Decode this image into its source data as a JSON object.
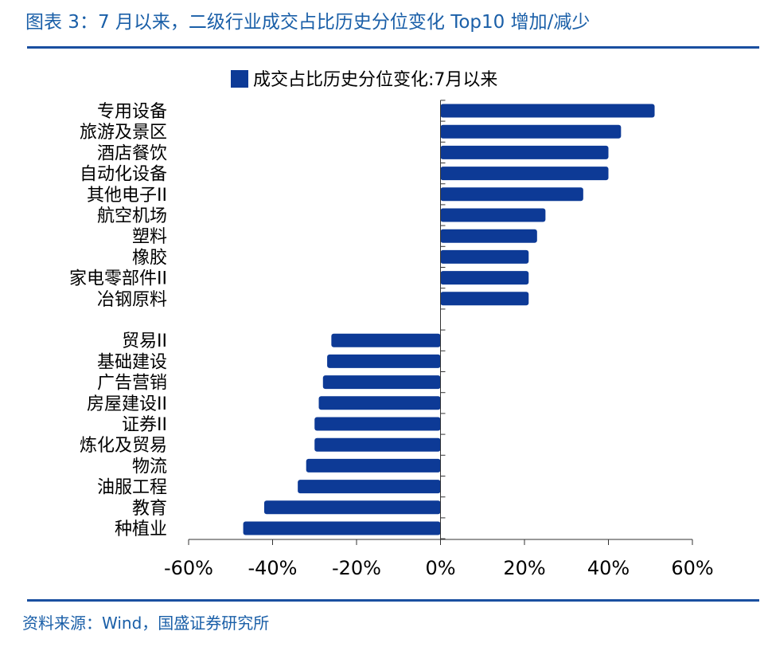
{
  "figure": {
    "title": "图表 3：7 月以来，二级行业成交占比历史分位变化 Top10 增加/减少",
    "source": "资料来源：Wind，国盛证券研究所"
  },
  "colors": {
    "bar": "#0d3a96",
    "accent": "#1a5fa8",
    "axis": "#333333"
  },
  "chart_data": {
    "type": "bar",
    "orientation": "horizontal",
    "title": "",
    "xlabel": "",
    "ylabel": "",
    "xlim": [
      -0.6,
      0.6
    ],
    "xticks": [
      -0.6,
      -0.4,
      -0.2,
      0,
      0.2,
      0.4,
      0.6
    ],
    "xtick_labels": [
      "-60%",
      "-40%",
      "-20%",
      "0%",
      "20%",
      "40%",
      "60%"
    ],
    "legend": {
      "position": "top-center"
    },
    "grid": false,
    "series": [
      {
        "name": "成交占比历史分位变化:7月以来",
        "categories": [
          "专用设备",
          "旅游及景区",
          "酒店餐饮",
          "自动化设备",
          "其他电子II",
          "航空机场",
          "塑料",
          "橡胶",
          "家电零部件II",
          "冶钢原料",
          "",
          "贸易II",
          "基础建设",
          "广告营销",
          "房屋建设II",
          "证券II",
          "炼化及贸易",
          "物流",
          "油服工程",
          "教育",
          "种植业"
        ],
        "values": [
          0.51,
          0.43,
          0.4,
          0.4,
          0.34,
          0.25,
          0.23,
          0.21,
          0.21,
          0.21,
          null,
          -0.26,
          -0.27,
          -0.28,
          -0.29,
          -0.3,
          -0.3,
          -0.32,
          -0.34,
          -0.42,
          -0.47
        ]
      }
    ]
  }
}
